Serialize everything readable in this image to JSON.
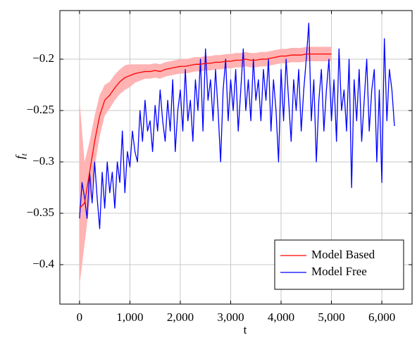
{
  "chart_data": {
    "type": "line",
    "x_label": "t",
    "y_label": "f",
    "y_label_sub": "t",
    "xlim": [
      -390,
      6600
    ],
    "ylim": [
      -0.4384,
      -0.1527
    ],
    "xticks": [
      0,
      {
        "value": 1000,
        "label": "1,000"
      },
      {
        "value": 2000,
        "label": "2,000"
      },
      {
        "value": 3000,
        "label": "3,000"
      },
      {
        "value": 4000,
        "label": "4,000"
      },
      {
        "value": 5000,
        "label": "5,000"
      },
      {
        "value": 6000,
        "label": "6,000"
      }
    ],
    "yticks": [
      {
        "value": -0.4,
        "label": "−0.4"
      },
      {
        "value": -0.35,
        "label": "−0.35"
      },
      {
        "value": -0.3,
        "label": "−0.3"
      },
      {
        "value": -0.25,
        "label": "−0.25"
      },
      {
        "value": -0.2,
        "label": "−0.2"
      }
    ],
    "grid": true,
    "legend": "lower right",
    "series": [
      {
        "name": "Model Based",
        "color": "#ff0000",
        "band_color": "#ffb3b3",
        "x": [
          0,
          100,
          200,
          300,
          400,
          500,
          600,
          700,
          800,
          900,
          1000,
          1100,
          1200,
          1300,
          1400,
          1500,
          1600,
          1700,
          1800,
          1900,
          2000,
          2100,
          2200,
          2300,
          2400,
          2500,
          2600,
          2700,
          2800,
          2900,
          3000,
          3100,
          3200,
          3300,
          3400,
          3500,
          3600,
          3700,
          3800,
          3900,
          4000,
          4100,
          4200,
          4300,
          4400,
          4500,
          4600,
          4700,
          4800,
          4900,
          5000
        ],
        "values": [
          -0.345,
          -0.34,
          -0.31,
          -0.28,
          -0.255,
          -0.24,
          -0.235,
          -0.228,
          -0.222,
          -0.218,
          -0.216,
          -0.214,
          -0.213,
          -0.212,
          -0.212,
          -0.211,
          -0.212,
          -0.21,
          -0.209,
          -0.208,
          -0.207,
          -0.207,
          -0.206,
          -0.205,
          -0.205,
          -0.204,
          -0.204,
          -0.203,
          -0.203,
          -0.202,
          -0.202,
          -0.201,
          -0.201,
          -0.2,
          -0.201,
          -0.201,
          -0.2,
          -0.2,
          -0.199,
          -0.198,
          -0.197,
          -0.197,
          -0.196,
          -0.196,
          -0.196,
          -0.195,
          -0.195,
          -0.195,
          -0.195,
          -0.195,
          -0.195
        ],
        "upper": [
          -0.24,
          -0.3,
          -0.28,
          -0.255,
          -0.235,
          -0.225,
          -0.222,
          -0.215,
          -0.21,
          -0.206,
          -0.205,
          -0.205,
          -0.205,
          -0.205,
          -0.205,
          -0.204,
          -0.205,
          -0.203,
          -0.202,
          -0.201,
          -0.2,
          -0.2,
          -0.199,
          -0.198,
          -0.198,
          -0.197,
          -0.197,
          -0.196,
          -0.196,
          -0.195,
          -0.195,
          -0.194,
          -0.194,
          -0.193,
          -0.194,
          -0.194,
          -0.193,
          -0.193,
          -0.192,
          -0.191,
          -0.19,
          -0.19,
          -0.189,
          -0.189,
          -0.189,
          -0.188,
          -0.188,
          -0.188,
          -0.188,
          -0.188,
          -0.188
        ],
        "lower": [
          -0.42,
          -0.38,
          -0.34,
          -0.305,
          -0.275,
          -0.255,
          -0.248,
          -0.24,
          -0.234,
          -0.23,
          -0.227,
          -0.223,
          -0.221,
          -0.219,
          -0.219,
          -0.218,
          -0.219,
          -0.217,
          -0.216,
          -0.215,
          -0.214,
          -0.214,
          -0.213,
          -0.212,
          -0.212,
          -0.211,
          -0.211,
          -0.21,
          -0.21,
          -0.209,
          -0.209,
          -0.208,
          -0.208,
          -0.207,
          -0.208,
          -0.208,
          -0.207,
          -0.207,
          -0.206,
          -0.205,
          -0.204,
          -0.204,
          -0.203,
          -0.203,
          -0.203,
          -0.202,
          -0.202,
          -0.202,
          -0.202,
          -0.202,
          -0.202
        ]
      },
      {
        "name": "Model Free",
        "color": "#0000ff",
        "x": [
          0,
          50,
          100,
          150,
          200,
          250,
          300,
          350,
          400,
          450,
          500,
          550,
          600,
          650,
          700,
          750,
          800,
          850,
          900,
          950,
          1000,
          1050,
          1100,
          1150,
          1200,
          1250,
          1300,
          1350,
          1400,
          1450,
          1500,
          1550,
          1600,
          1650,
          1700,
          1750,
          1800,
          1850,
          1900,
          1950,
          2000,
          2050,
          2100,
          2150,
          2200,
          2250,
          2300,
          2350,
          2400,
          2450,
          2500,
          2550,
          2600,
          2650,
          2700,
          2750,
          2800,
          2850,
          2900,
          2950,
          3000,
          3050,
          3100,
          3150,
          3200,
          3250,
          3300,
          3350,
          3400,
          3450,
          3500,
          3550,
          3600,
          3650,
          3700,
          3750,
          3800,
          3850,
          3900,
          3950,
          4000,
          4050,
          4100,
          4150,
          4200,
          4250,
          4300,
          4350,
          4400,
          4450,
          4500,
          4550,
          4600,
          4650,
          4700,
          4750,
          4800,
          4850,
          4900,
          4950,
          5000,
          5050,
          5100,
          5150,
          5200,
          5250,
          5300,
          5350,
          5400,
          5450,
          5500,
          5550,
          5600,
          5650,
          5700,
          5750,
          5800,
          5850,
          5900,
          5950,
          6000,
          6050,
          6100,
          6150,
          6200,
          6250
        ],
        "values": [
          -0.355,
          -0.32,
          -0.335,
          -0.355,
          -0.31,
          -0.34,
          -0.3,
          -0.335,
          -0.365,
          -0.31,
          -0.345,
          -0.3,
          -0.33,
          -0.31,
          -0.345,
          -0.3,
          -0.32,
          -0.27,
          -0.33,
          -0.29,
          -0.305,
          -0.27,
          -0.29,
          -0.3,
          -0.25,
          -0.28,
          -0.24,
          -0.27,
          -0.26,
          -0.29,
          -0.245,
          -0.27,
          -0.23,
          -0.26,
          -0.28,
          -0.24,
          -0.27,
          -0.22,
          -0.29,
          -0.25,
          -0.23,
          -0.27,
          -0.21,
          -0.26,
          -0.24,
          -0.28,
          -0.22,
          -0.25,
          -0.2,
          -0.27,
          -0.19,
          -0.24,
          -0.22,
          -0.26,
          -0.21,
          -0.25,
          -0.3,
          -0.23,
          -0.2,
          -0.26,
          -0.22,
          -0.25,
          -0.21,
          -0.27,
          -0.23,
          -0.19,
          -0.25,
          -0.22,
          -0.26,
          -0.2,
          -0.24,
          -0.22,
          -0.26,
          -0.21,
          -0.24,
          -0.2,
          -0.27,
          -0.22,
          -0.25,
          -0.3,
          -0.21,
          -0.26,
          -0.2,
          -0.24,
          -0.28,
          -0.22,
          -0.25,
          -0.21,
          -0.27,
          -0.23,
          -0.2,
          -0.165,
          -0.26,
          -0.22,
          -0.3,
          -0.24,
          -0.21,
          -0.27,
          -0.23,
          -0.2,
          -0.26,
          -0.22,
          -0.28,
          -0.19,
          -0.25,
          -0.23,
          -0.27,
          -0.2,
          -0.325,
          -0.22,
          -0.26,
          -0.21,
          -0.28,
          -0.24,
          -0.2,
          -0.27,
          -0.23,
          -0.21,
          -0.3,
          -0.23,
          -0.32,
          -0.18,
          -0.26,
          -0.21,
          -0.23,
          -0.265
        ]
      }
    ]
  }
}
